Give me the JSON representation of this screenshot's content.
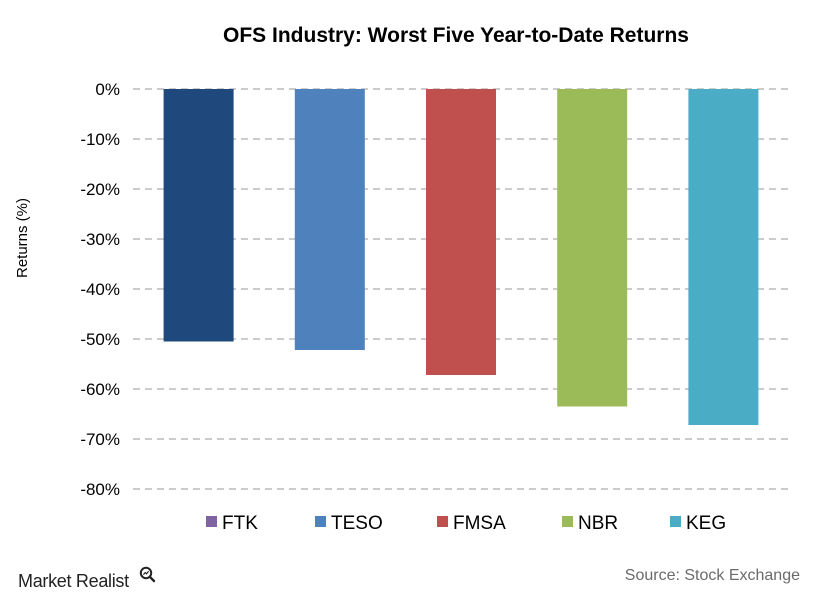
{
  "chart_data": {
    "type": "bar",
    "title": "OFS Industry: Worst Five Year-to-Date Returns",
    "ylabel": "Returns (%)",
    "xlabel": "",
    "ylim": [
      -80,
      0
    ],
    "yticks": [
      0,
      -10,
      -20,
      -30,
      -40,
      -50,
      -60,
      -70,
      -80
    ],
    "ytick_labels": [
      "0%",
      "-10%",
      "-20%",
      "-30%",
      "-40%",
      "-50%",
      "-60%",
      "-70%",
      "-80%"
    ],
    "grid": true,
    "legend_position": "bottom",
    "series": [
      {
        "name": "FTK",
        "value": -50.5,
        "bar_color": "#1F497D",
        "legend_color": "#8064A2"
      },
      {
        "name": "TESO",
        "value": -52.2,
        "bar_color": "#4F81BD",
        "legend_color": "#4F81BD"
      },
      {
        "name": "FMSA",
        "value": -57.2,
        "bar_color": "#C0504D",
        "legend_color": "#C0504D"
      },
      {
        "name": "NBR",
        "value": -63.5,
        "bar_color": "#9BBB59",
        "legend_color": "#9BBB59"
      },
      {
        "name": "KEG",
        "value": -67.2,
        "bar_color": "#4BACC6",
        "legend_color": "#4BACC6"
      }
    ]
  },
  "footer": {
    "brand": "Market Realist",
    "brand_icon": "magnifier-icon",
    "source": "Source:  Stock Exchange"
  }
}
